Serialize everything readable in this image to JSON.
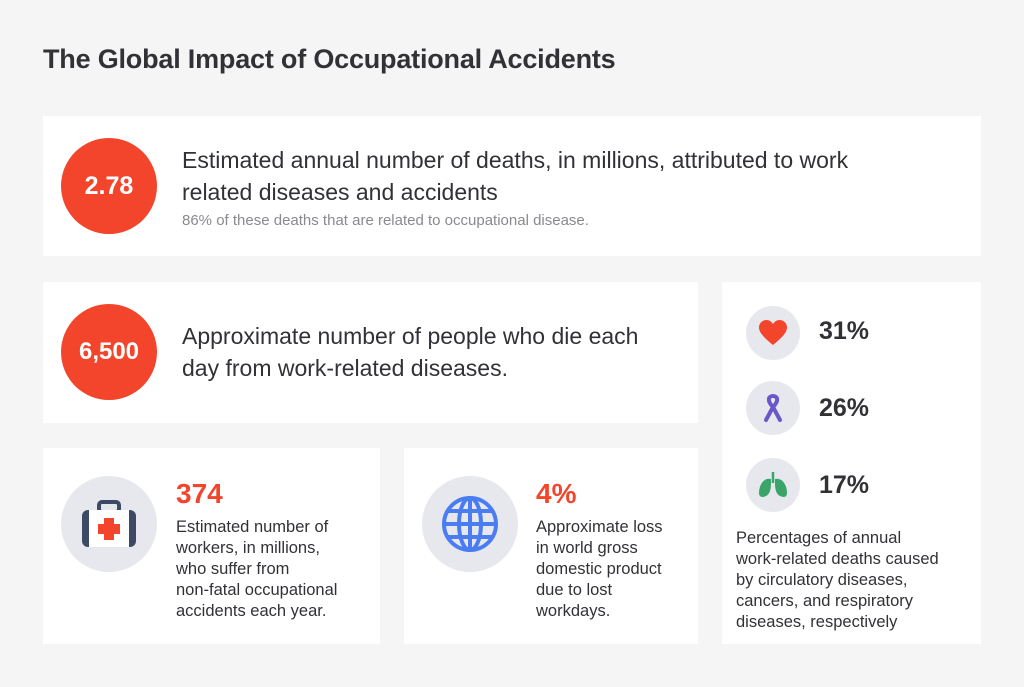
{
  "title": "The Global Impact of Occupational Accidents",
  "card1": {
    "value": "2.78",
    "line1": "Estimated annual number of deaths, in millions, attributed to work",
    "line2": "related diseases and accidents",
    "note": "86% of these deaths that are related to occupational disease."
  },
  "card2": {
    "value": "6,500",
    "line1": "Approximate number of people who die each",
    "line2": "day from work-related diseases."
  },
  "card3": {
    "value": "374",
    "icon": "first-aid-kit-icon",
    "lines": [
      "Estimated number of",
      "workers, in millions,",
      "who suffer from",
      "non-fatal occupational",
      "accidents each year."
    ]
  },
  "card4": {
    "value": "4%",
    "icon": "globe-icon",
    "lines": [
      "Approximate loss",
      "in world gross",
      "domestic product",
      "due to lost",
      "workdays."
    ]
  },
  "card5": {
    "items": [
      {
        "icon": "heart-icon",
        "value": "31%"
      },
      {
        "icon": "cancer-ribbon-icon",
        "value": "26%"
      },
      {
        "icon": "lungs-icon",
        "value": "17%"
      }
    ],
    "lines": [
      "Percentages of annual",
      "work-related deaths caused",
      "by circulatory diseases,",
      "cancers, and respiratory",
      "diseases, respectively"
    ]
  },
  "colors": {
    "accent": "#f2452c",
    "icon_blue": "#4a7df2",
    "ribbon_purple": "#6b57c8",
    "lungs_green": "#3aa56a",
    "kit_navy": "#3c4a66"
  }
}
